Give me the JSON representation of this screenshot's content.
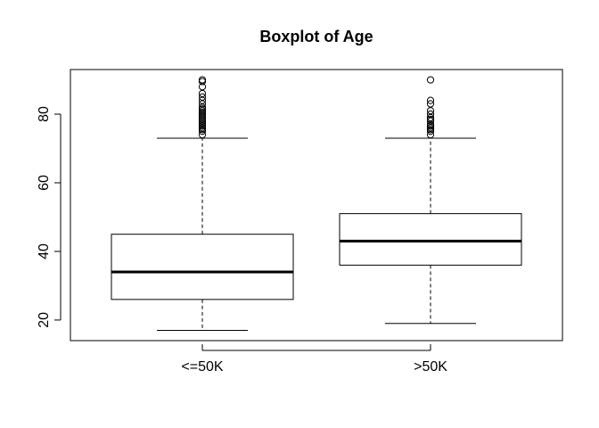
{
  "chart_data": {
    "type": "boxplot",
    "title": "Boxplot of Age",
    "xlabel": "",
    "ylabel": "",
    "categories": [
      "<=50K",
      ">50K"
    ],
    "ylim": [
      14,
      93
    ],
    "yticks": [
      20,
      40,
      60,
      80
    ],
    "grid": false,
    "boxes": [
      {
        "category": "<=50K",
        "whisker_low": 17,
        "q1": 26,
        "median": 34,
        "q3": 45,
        "whisker_high": 73,
        "outliers": [
          74,
          75,
          75.5,
          76,
          76.5,
          77,
          77.5,
          78,
          78.5,
          79,
          79.5,
          80,
          80.5,
          81,
          81.5,
          82,
          83,
          84,
          85,
          86,
          88,
          89.5,
          90
        ]
      },
      {
        "category": ">50K",
        "whisker_low": 19,
        "q1": 36,
        "median": 43,
        "q3": 51,
        "whisker_high": 73,
        "outliers": [
          74,
          75,
          75.5,
          76,
          76.5,
          77,
          78,
          78.5,
          79,
          80,
          81,
          83,
          84,
          90
        ]
      }
    ]
  }
}
